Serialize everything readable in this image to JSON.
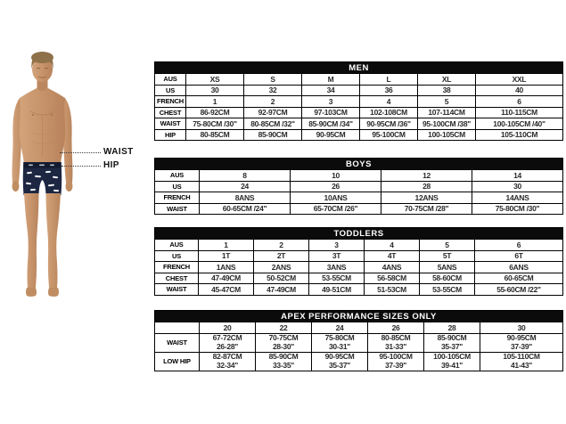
{
  "figure": {
    "waist_label": "WAIST",
    "hip_label": "HIP"
  },
  "colors": {
    "table_header_bg": "#0b0b0b",
    "table_header_text": "#ffffff",
    "table_border": "#000000",
    "trunks_navy": "#1d2742",
    "waistband": "#121a30",
    "skin": "#c6936a"
  },
  "tables": [
    {
      "title": "MEN",
      "rows": [
        {
          "label": "AUS",
          "values": [
            "XS",
            "S",
            "M",
            "L",
            "XL",
            "XXL"
          ]
        },
        {
          "label": "US",
          "values": [
            "30",
            "32",
            "34",
            "36",
            "38",
            "40"
          ]
        },
        {
          "label": "FRENCH",
          "values": [
            "1",
            "2",
            "3",
            "4",
            "5",
            "6"
          ]
        },
        {
          "label": "CHEST",
          "values": [
            "86-92CM",
            "92-97CM",
            "97-103CM",
            "102-108CM",
            "107-114CM",
            "110-115CM"
          ]
        },
        {
          "label": "WAIST",
          "values": [
            "75-80CM /30\"",
            "80-85CM /32\"",
            "85-90CM /34\"",
            "90-95CM /36\"",
            "95-100CM /38\"",
            "100-105CM /40\""
          ]
        },
        {
          "label": "HIP",
          "values": [
            "80-85CM",
            "85-90CM",
            "90-95CM",
            "95-100CM",
            "100-105CM",
            "105-110CM"
          ]
        }
      ]
    },
    {
      "title": "BOYS",
      "rows": [
        {
          "label": "AUS",
          "values": [
            "8",
            "10",
            "12",
            "14"
          ]
        },
        {
          "label": "US",
          "values": [
            "24",
            "26",
            "28",
            "30"
          ]
        },
        {
          "label": "FRENCH",
          "values": [
            "8ANS",
            "10ANS",
            "12ANS",
            "14ANS"
          ]
        },
        {
          "label": "WAIST",
          "values": [
            "60-65CM /24\"",
            "65-70CM /26\"",
            "70-75CM /28\"",
            "75-80CM /30\""
          ]
        }
      ]
    },
    {
      "title": "TODDLERS",
      "rows": [
        {
          "label": "AUS",
          "values": [
            "1",
            "2",
            "3",
            "4",
            "5",
            "6"
          ]
        },
        {
          "label": "US",
          "values": [
            "1T",
            "2T",
            "3T",
            "4T",
            "5T",
            "6T"
          ]
        },
        {
          "label": "FRENCH",
          "values": [
            "1ANS",
            "2ANS",
            "3ANS",
            "4ANS",
            "5ANS",
            "6ANS"
          ]
        },
        {
          "label": "CHEST",
          "values": [
            "47-49CM",
            "50-52CM",
            "53-55CM",
            "56-58CM",
            "58-60CM",
            "60-65CM"
          ]
        },
        {
          "label": "WAIST",
          "values": [
            "45-47CM",
            "47-49CM",
            "49-51CM",
            "51-53CM",
            "53-55CM",
            "55-60CM /22\""
          ]
        }
      ]
    },
    {
      "title": "APEX PERFORMANCE SIZES ONLY",
      "rows": [
        {
          "label": "",
          "values": [
            "20",
            "22",
            "24",
            "26",
            "28",
            "30"
          ]
        },
        {
          "label": "WAIST",
          "values": [
            "67-72CM\n26-28\"",
            "70-75CM\n28-30\"",
            "75-80CM\n30-31\"",
            "80-85CM\n31-33\"",
            "85-90CM\n35-37\"",
            "90-95CM\n37-39\""
          ]
        },
        {
          "label": "LOW HIP",
          "values": [
            "82-87CM\n32-34\"",
            "85-90CM\n33-35\"",
            "90-95CM\n35-37\"",
            "95-100CM\n37-39\"",
            "100-105CM\n39-41\"",
            "105-110CM\n41-43\""
          ]
        }
      ]
    }
  ]
}
